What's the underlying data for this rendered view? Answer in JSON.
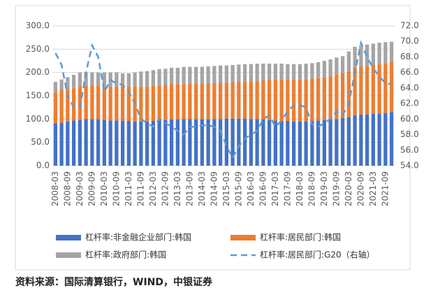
{
  "chart_data": {
    "type": "stacked-bar-line",
    "source": "资料来源：国际清算银行，WIND，中银证券",
    "categories": [
      "2008-03",
      null,
      "2008-09",
      null,
      "2009-03",
      null,
      "2009-09",
      null,
      "2010-03",
      null,
      "2010-09",
      null,
      "2011-03",
      null,
      "2011-09",
      null,
      "2012-03",
      null,
      "2012-09",
      null,
      "2013-03",
      null,
      "2013-09",
      null,
      "2014-03",
      null,
      "2014-09",
      null,
      "2015-03",
      null,
      "2015-09",
      null,
      "2016-03",
      null,
      "2016-09",
      null,
      "2017-03",
      null,
      "2017-09",
      null,
      "2018-03",
      null,
      "2018-09",
      null,
      "2019-03",
      null,
      "2019-09",
      null,
      "2020-03",
      null,
      "2020-09",
      null,
      "2021-03",
      null,
      "2021-09",
      null
    ],
    "series": [
      {
        "name": "杠杆率:非金融企业部门:韩国",
        "color": "#4472c4",
        "kind": "bar",
        "values": [
          90,
          92,
          95,
          97,
          98,
          100,
          100,
          99,
          98,
          97,
          97,
          96,
          96,
          95,
          95,
          95,
          96,
          97,
          98,
          99,
          99,
          100,
          100,
          100,
          99,
          99,
          100,
          100,
          101,
          101,
          101,
          101,
          100,
          100,
          99,
          98,
          97,
          96,
          96,
          95,
          95,
          95,
          96,
          97,
          98,
          99,
          100,
          102,
          104,
          108,
          110,
          110,
          111,
          112,
          113,
          115
        ]
      },
      {
        "name": "杠杆率:居民部门:韩国",
        "color": "#ed7d31",
        "kind": "bar",
        "values": [
          68,
          70,
          70,
          69,
          72,
          72,
          72,
          72,
          72,
          73,
          73,
          74,
          74,
          75,
          75,
          75,
          75,
          75,
          75,
          75,
          76,
          75,
          76,
          76,
          77,
          78,
          77,
          78,
          77,
          78,
          79,
          80,
          81,
          82,
          84,
          86,
          87,
          88,
          88,
          89,
          89,
          90,
          90,
          91,
          92,
          94,
          96,
          97,
          99,
          102,
          103,
          104,
          105,
          106,
          107,
          107
        ]
      },
      {
        "name": "杠杆率:政府部门:韩国",
        "color": "#a5a5a5",
        "kind": "bar",
        "values": [
          22,
          23,
          25,
          29,
          30,
          28,
          28,
          29,
          30,
          30,
          30,
          28,
          28,
          30,
          32,
          33,
          34,
          35,
          35,
          36,
          35,
          37,
          36,
          36,
          36,
          36,
          37,
          37,
          37,
          37,
          37,
          37,
          37,
          37,
          36,
          35,
          35,
          35,
          34,
          34,
          34,
          34,
          34,
          34,
          35,
          35,
          36,
          36,
          42,
          45,
          45,
          46,
          46,
          46,
          45,
          44
        ]
      },
      {
        "name": "杠杆率:居民部门:G20（右轴）",
        "color": "#5b9bd5",
        "kind": "line",
        "axis": "y2",
        "values": [
          68.5,
          67,
          63,
          61.5,
          61.5,
          66,
          69.5,
          68,
          63.5,
          65,
          64.6,
          64.4,
          63.5,
          62,
          60,
          59.5,
          59,
          60,
          59.5,
          59,
          58.5,
          58,
          59,
          59,
          59.2,
          59.2,
          59,
          58.5,
          56.5,
          55,
          56.5,
          57.5,
          58,
          58.5,
          60,
          60.5,
          59,
          59.8,
          61,
          61.8,
          61.8,
          61.5,
          59.3,
          59,
          59.5,
          60,
          61,
          60.5,
          62,
          66,
          69.8,
          68,
          66.5,
          65.5,
          64.6,
          64.5
        ]
      }
    ],
    "ylim": [
      0,
      300
    ],
    "yticks": [
      {
        "value": 0,
        "label": "0.0"
      },
      {
        "value": 50,
        "label": "50.0"
      },
      {
        "value": 100,
        "label": "100.0"
      },
      {
        "value": 150,
        "label": "150.0"
      },
      {
        "value": 200,
        "label": "200.0"
      },
      {
        "value": 250,
        "label": "250.0"
      },
      {
        "value": 300,
        "label": "300.0"
      }
    ],
    "y2lim": [
      54,
      72
    ],
    "y2ticks": [
      {
        "value": 54,
        "label": "54.0"
      },
      {
        "value": 56,
        "label": "56.0"
      },
      {
        "value": 58,
        "label": "58.0"
      },
      {
        "value": 60,
        "label": "60.0"
      },
      {
        "value": 62,
        "label": "62.0"
      },
      {
        "value": 64,
        "label": "64.0"
      },
      {
        "value": 66,
        "label": "66.0"
      },
      {
        "value": 68,
        "label": "68.0"
      },
      {
        "value": 70,
        "label": "70.0"
      },
      {
        "value": 72,
        "label": "72.0"
      }
    ]
  }
}
